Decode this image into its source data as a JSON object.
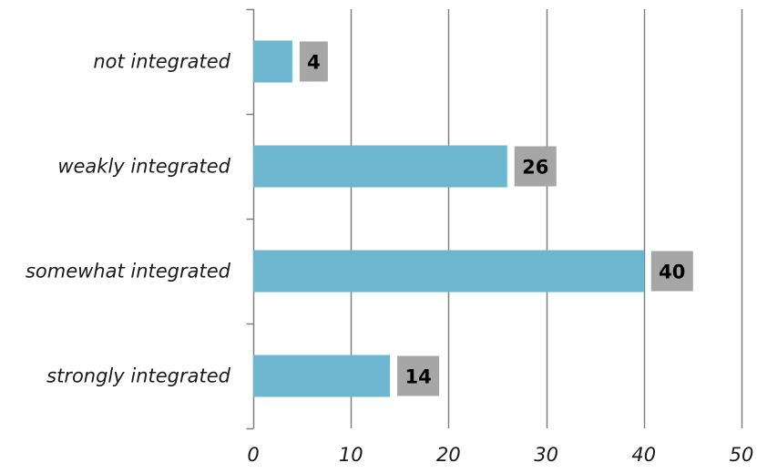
{
  "chart_data": {
    "type": "bar",
    "orientation": "horizontal",
    "categories": [
      "not integrated",
      "weakly integrated",
      "somewhat integrated",
      "strongly integrated"
    ],
    "values": [
      4,
      26,
      40,
      14
    ],
    "xlim": [
      0,
      50
    ],
    "xticks": [
      0,
      10,
      20,
      30,
      40,
      50
    ],
    "xtick_labels": [
      "0",
      "10",
      "20",
      "30",
      "40",
      "50"
    ],
    "data_labels": [
      "4",
      "26",
      "40",
      "14"
    ],
    "grid": "vertical",
    "legend": "none"
  },
  "colors": {
    "bar": "#6cb7cf",
    "label_box": "#a6a6a6",
    "grid": "#808080",
    "axis": "#808080"
  }
}
